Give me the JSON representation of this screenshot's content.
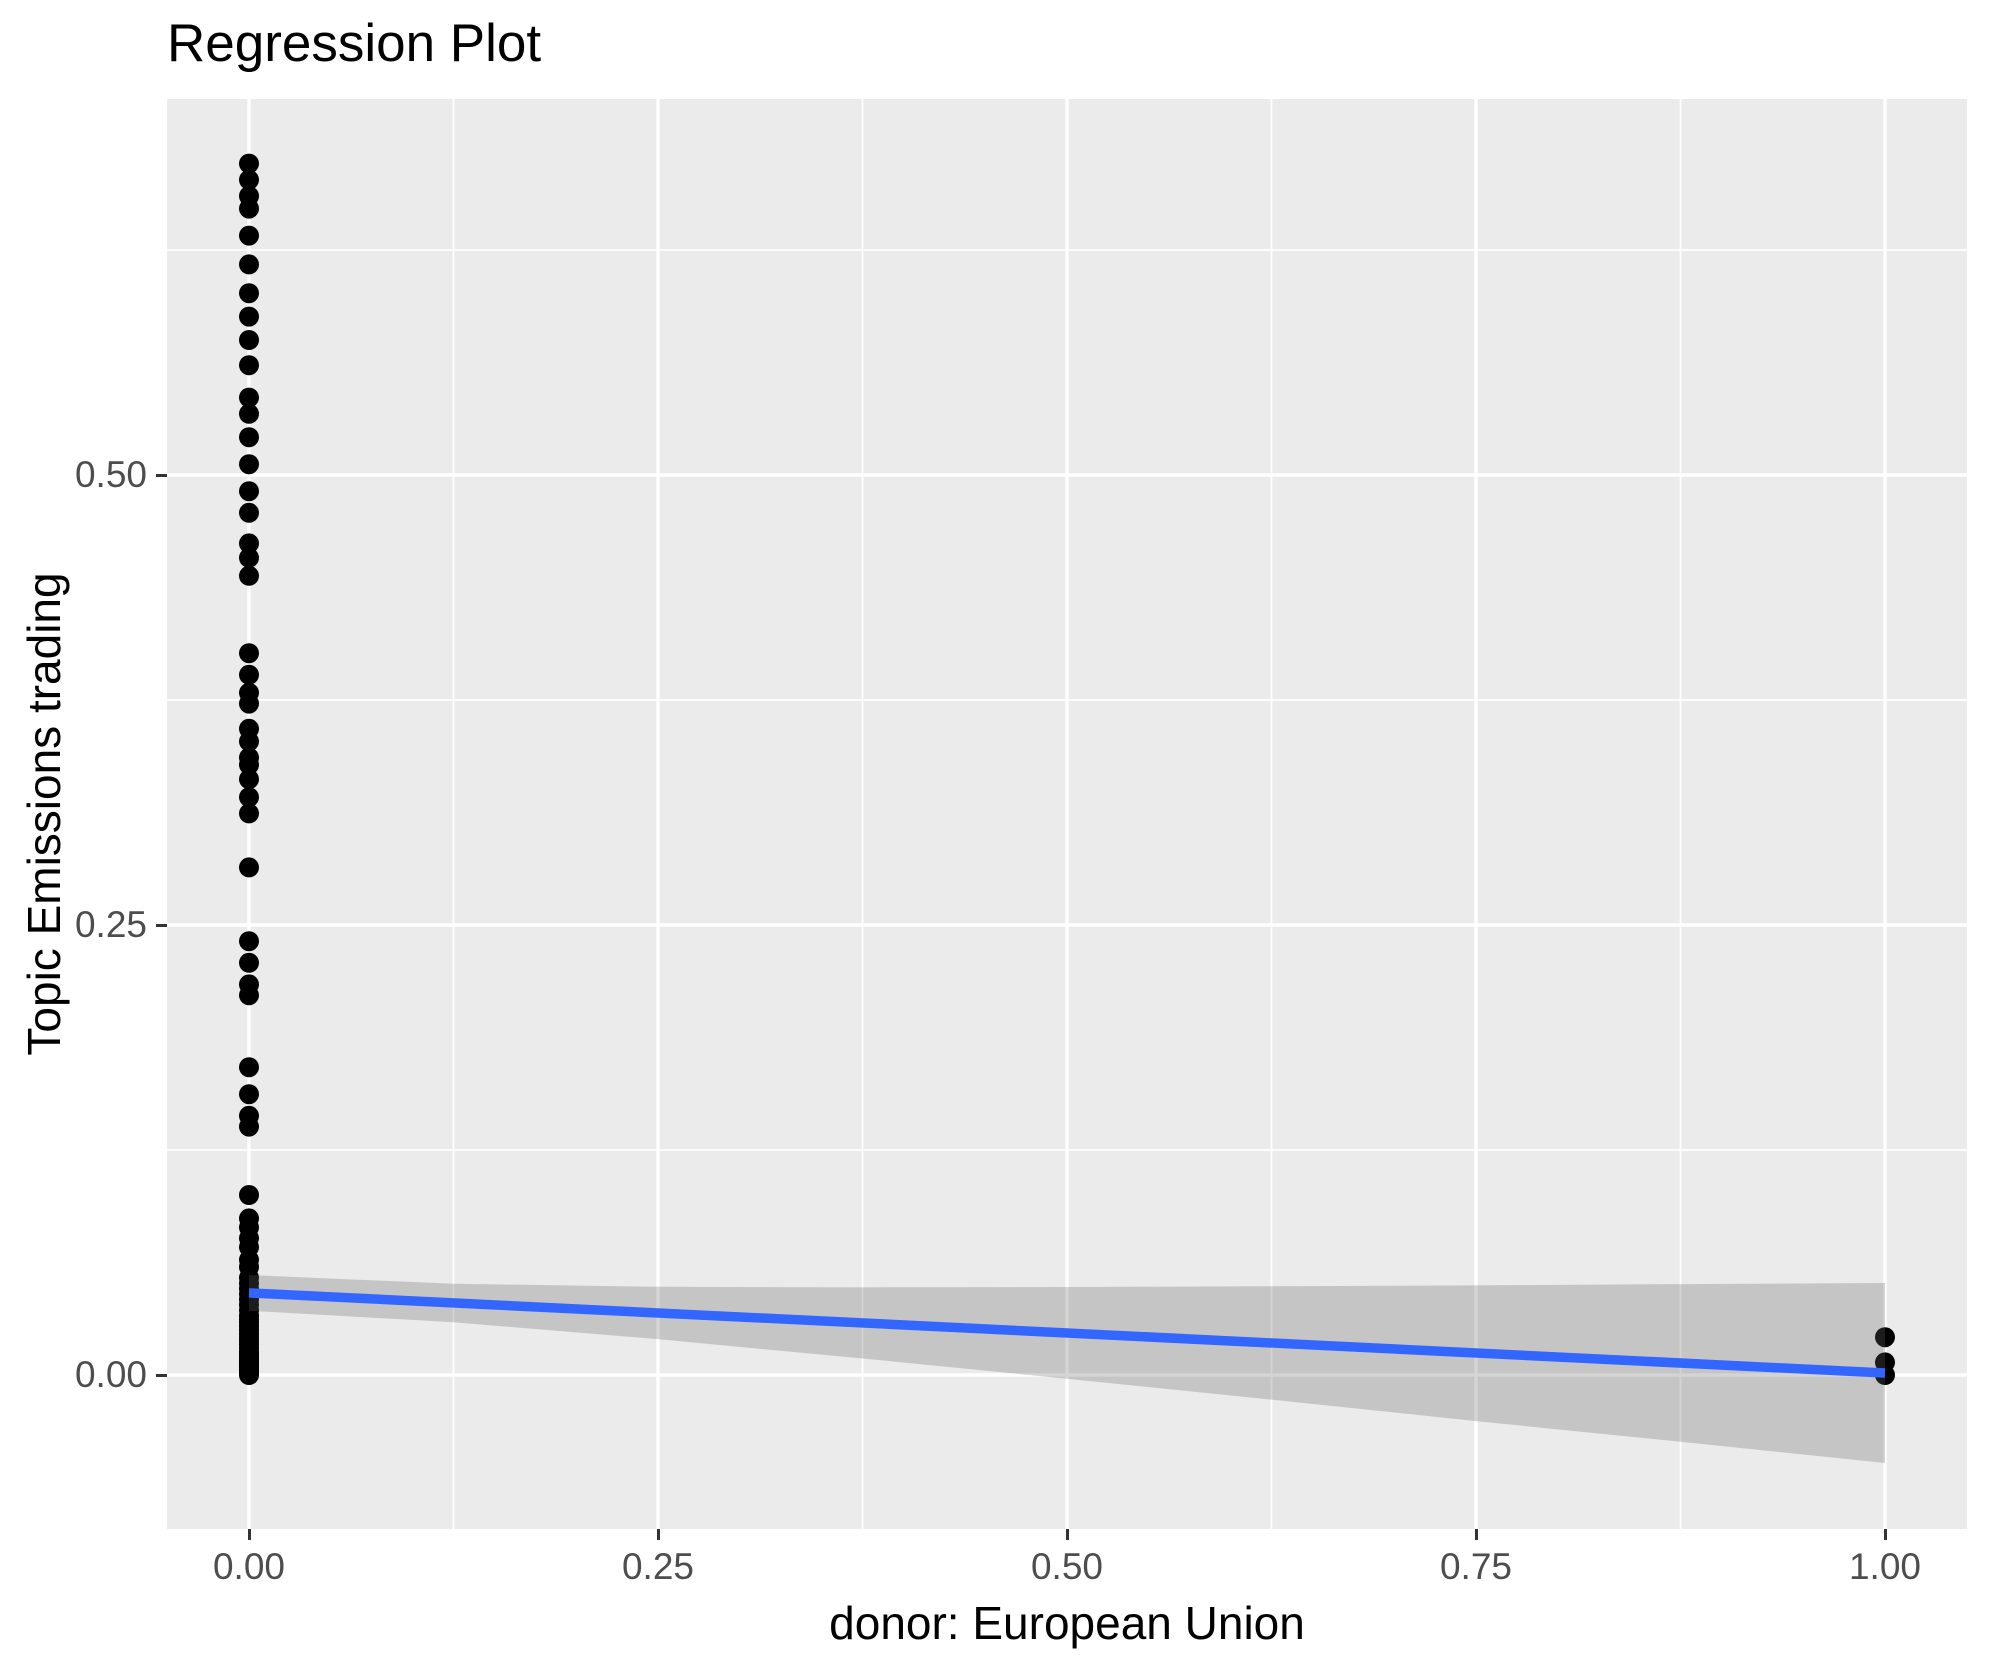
{
  "title": "Regression Plot",
  "colors": {
    "page_bg": "#FFFFFF",
    "panel_bg": "#EBEBEB",
    "grid": "#FFFFFF",
    "point": "#000000",
    "smooth_line": "#3366FF",
    "ribbon_fill": "rgba(102,102,102,0.28)",
    "tick_label": "#4D4D4D",
    "tick_mark": "#333333",
    "axis_title": "#000000"
  },
  "chart_data": {
    "type": "scatter",
    "title": "Regression Plot",
    "xlabel": "donor: European Union",
    "ylabel": "Topic Emissions trading",
    "grid": true,
    "legend": "none",
    "xlim": [
      -0.05,
      1.05
    ],
    "ylim": [
      -0.086,
      0.709
    ],
    "x_ticks": [
      {
        "value": 0.0,
        "label": "0.00"
      },
      {
        "value": 0.25,
        "label": "0.25"
      },
      {
        "value": 0.5,
        "label": "0.50"
      },
      {
        "value": 0.75,
        "label": "0.75"
      },
      {
        "value": 1.0,
        "label": "1.00"
      }
    ],
    "y_ticks": [
      {
        "value": 0.0,
        "label": "0.00"
      },
      {
        "value": 0.25,
        "label": "0.25"
      },
      {
        "value": 0.5,
        "label": "0.50"
      }
    ],
    "x_minor_gridlines": [
      0.125,
      0.375,
      0.625,
      0.875
    ],
    "y_minor_gridlines": [
      0.125,
      0.375,
      0.625
    ],
    "series": [
      {
        "name": "observations",
        "type": "points",
        "groups": [
          {
            "x": 0,
            "y": [
              0.673,
              0.664,
              0.655,
              0.648,
              0.633,
              0.617,
              0.601,
              0.588,
              0.575,
              0.561,
              0.543,
              0.534,
              0.521,
              0.506,
              0.491,
              0.479,
              0.462,
              0.454,
              0.444,
              0.401,
              0.389,
              0.379,
              0.373,
              0.359,
              0.352,
              0.343,
              0.339,
              0.331,
              0.321,
              0.312,
              0.282,
              0.241,
              0.229,
              0.217,
              0.211,
              0.171,
              0.156,
              0.144,
              0.138,
              0.1,
              0.087,
              0.082,
              0.076,
              0.071,
              0.064,
              0.06,
              0.054,
              0.051,
              0.048,
              0.045,
              0.042,
              0.039,
              0.036,
              0.033,
              0.031,
              0.029,
              0.027,
              0.025,
              0.023,
              0.021,
              0.019,
              0.017,
              0.015,
              0.013,
              0.012,
              0.011,
              0.01,
              0.009,
              0.008,
              0.007,
              0.006,
              0.005,
              0.004,
              0.003,
              0.002,
              0.001,
              0.0
            ]
          },
          {
            "x": 1,
            "y": [
              0.021,
              0.007,
              0.0
            ]
          }
        ]
      },
      {
        "name": "lm-fit-line",
        "type": "line",
        "x": [
          0,
          1
        ],
        "y": [
          0.0456,
          0.0011
        ]
      },
      {
        "name": "confidence-ribbon",
        "type": "ribbon",
        "x": [
          0,
          0.125,
          0.25,
          0.375,
          0.5,
          0.625,
          0.75,
          0.875,
          1
        ],
        "ymax": [
          0.0555,
          0.0507,
          0.049,
          0.0487,
          0.0489,
          0.0493,
          0.0498,
          0.0505,
          0.0511
        ],
        "ymin": [
          0.0357,
          0.0293,
          0.0199,
          0.0092,
          -0.0021,
          -0.0137,
          -0.0256,
          -0.0371,
          -0.0489
        ]
      }
    ]
  }
}
